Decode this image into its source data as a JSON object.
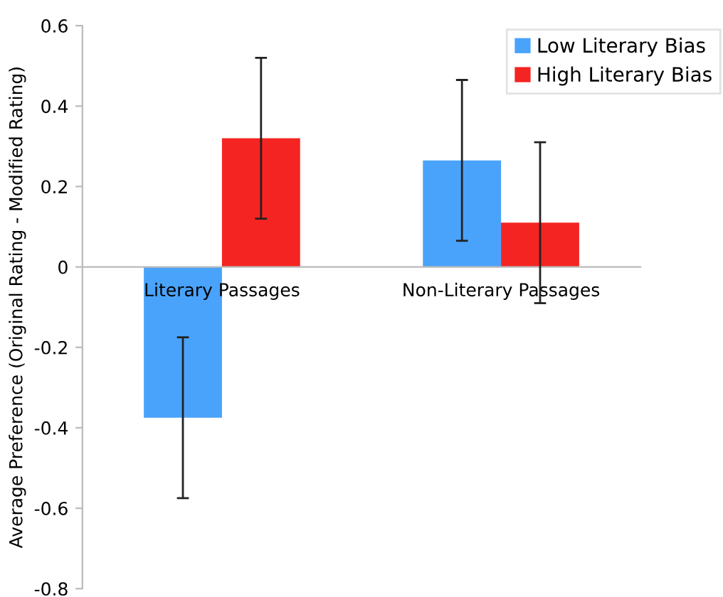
{
  "chart_data": {
    "type": "bar",
    "ylabel": "Average Preference (Original Rating - Modified Rating)",
    "categories": [
      "Literary Passages",
      "Non-Literary Passages"
    ],
    "series": [
      {
        "name": "Low Literary Bias",
        "color": "#4aa3fb",
        "values": [
          -0.375,
          0.265
        ],
        "errors": [
          0.2,
          0.2
        ]
      },
      {
        "name": "High Literary Bias",
        "color": "#f42422",
        "values": [
          0.32,
          0.11
        ],
        "errors": [
          0.2,
          0.2
        ]
      }
    ],
    "ylim": [
      -0.8,
      0.6
    ],
    "yticks": [
      -0.8,
      -0.6,
      -0.4,
      -0.2,
      0,
      0.2,
      0.4,
      0.6
    ],
    "grid": false,
    "legend": "top right"
  }
}
